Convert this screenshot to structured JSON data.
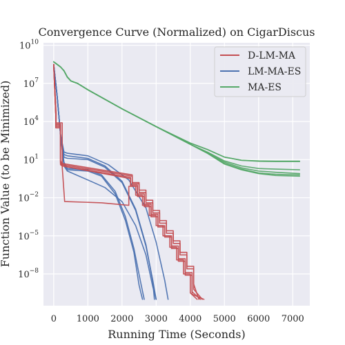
{
  "chart_data": {
    "type": "line",
    "title": "Convergence Curve (Normalized) on CigarDiscus",
    "xlabel": "Running Time (Seconds)",
    "ylabel": "Function Value (to be Minimized)",
    "xlim": [
      -300,
      7500
    ],
    "ylim_log10": [
      -10.5,
      10.2
    ],
    "yscale": "log",
    "grid": true,
    "legend_position": "top-right",
    "xticks": [
      0,
      1000,
      2000,
      3000,
      4000,
      5000,
      6000,
      7000
    ],
    "xtick_labels": [
      "0",
      "1000",
      "2000",
      "3000",
      "4000",
      "5000",
      "6000",
      "7000"
    ],
    "yticks_log10": [
      -8,
      -5,
      -2,
      1,
      4,
      7,
      10
    ],
    "ytick_bases": [
      "10",
      "10",
      "10",
      "10",
      "10",
      "10",
      "10"
    ],
    "ytick_exponents": [
      "−8",
      "−5",
      "−2",
      "1",
      "4",
      "7",
      "10"
    ],
    "series": [
      {
        "name": "D-LM-MA",
        "color": "#c44e52",
        "style": "step",
        "runs": [
          {
            "x": [
              0,
              60,
              60,
              200,
              200,
              250,
              2300,
              2300,
              2500,
              2500,
              2700,
              2700,
              2900,
              2900,
              3100,
              3100,
              3300,
              3300,
              3500,
              3500,
              3700,
              3700,
              3900,
              3900,
              4100,
              4100,
              4350
            ],
            "y": [
              8.5,
              4.6,
              3.5,
              3.5,
              0.8,
              0.6,
              -0.3,
              -0.9,
              -0.9,
              -1.6,
              -1.6,
              -2.4,
              -2.4,
              -3.2,
              -3.2,
              -4.0,
              -4.0,
              -4.8,
              -4.8,
              -5.6,
              -5.6,
              -6.5,
              -6.5,
              -7.6,
              -7.6,
              -9.2,
              -10.0
            ]
          },
          {
            "x": [
              0,
              60,
              60,
              200,
              200,
              250,
              2250,
              2250,
              2450,
              2450,
              2650,
              2650,
              2850,
              2850,
              3050,
              3050,
              3250,
              3250,
              3450,
              3450,
              3650,
              3650,
              3850,
              3850,
              4050,
              4050,
              4300
            ],
            "y": [
              8.5,
              4.6,
              3.7,
              3.7,
              0.7,
              0.5,
              -0.4,
              -1.0,
              -1.0,
              -1.7,
              -1.7,
              -2.5,
              -2.5,
              -3.3,
              -3.3,
              -4.2,
              -4.2,
              -5.0,
              -5.0,
              -5.8,
              -5.8,
              -6.8,
              -6.8,
              -7.9,
              -7.9,
              -9.4,
              -10.0
            ]
          },
          {
            "x": [
              0,
              60,
              60,
              200,
              200,
              250,
              2300,
              2300,
              2500,
              2500,
              2700,
              2700,
              2900,
              2900,
              3100,
              3100,
              3300,
              3300,
              3500,
              3500,
              3700,
              3700,
              3900,
              3900,
              4100,
              4100,
              4250
            ],
            "y": [
              8.5,
              4.6,
              3.6,
              3.6,
              0.9,
              0.7,
              -0.2,
              -0.8,
              -0.8,
              -1.4,
              -1.4,
              -2.2,
              -2.2,
              -3.0,
              -3.0,
              -3.8,
              -3.8,
              -4.6,
              -4.6,
              -5.4,
              -5.4,
              -6.3,
              -6.3,
              -7.4,
              -7.4,
              -8.8,
              -10.0
            ]
          },
          {
            "x": [
              0,
              70,
              70,
              250,
              250,
              320,
              1400,
              2200,
              2200,
              2400,
              2400,
              2600,
              2600,
              2800,
              2800,
              3000,
              3000,
              3200,
              3200,
              3400,
              3400,
              3600,
              3600,
              3800,
              3800,
              4000,
              4000,
              4200
            ],
            "y": [
              8.5,
              4.7,
              3.9,
              3.9,
              0.4,
              -2.3,
              -2.4,
              -2.6,
              -1.1,
              -1.1,
              -1.8,
              -1.8,
              -2.6,
              -2.6,
              -3.4,
              -3.4,
              -4.2,
              -4.2,
              -5.0,
              -5.0,
              -5.9,
              -5.9,
              -6.9,
              -6.9,
              -8.0,
              -8.0,
              -9.5,
              -10.0
            ]
          },
          {
            "x": [
              0,
              60,
              60,
              200,
              200,
              250,
              2250,
              2250,
              2450,
              2450,
              2650,
              2650,
              2850,
              2850,
              3050,
              3050,
              3250,
              3250,
              3450,
              3450,
              3650,
              3650,
              3850,
              3850,
              4050,
              4050,
              4400
            ],
            "y": [
              8.5,
              4.6,
              3.8,
              3.8,
              0.6,
              0.5,
              -0.5,
              -1.1,
              -1.1,
              -1.9,
              -1.9,
              -2.7,
              -2.7,
              -3.5,
              -3.5,
              -4.3,
              -4.3,
              -5.1,
              -5.1,
              -6.0,
              -6.0,
              -7.0,
              -7.0,
              -8.1,
              -8.1,
              -9.6,
              -10.0
            ]
          }
        ]
      },
      {
        "name": "LM-MA-ES",
        "color": "#4c72b0",
        "style": "line",
        "runs": [
          {
            "x": [
              0,
              100,
              200,
              300,
              400,
              1000,
              1400,
              1800,
              2100,
              2350,
              2550,
              2650
            ],
            "y": [
              8.5,
              6.0,
              3.0,
              0.8,
              0.3,
              0.2,
              -0.2,
              -1.5,
              -3.5,
              -6.0,
              -8.7,
              -10.0
            ]
          },
          {
            "x": [
              0,
              100,
              200,
              300,
              400,
              1000,
              1400,
              1800,
              2100,
              2350,
              2500,
              2600
            ],
            "y": [
              8.5,
              6.0,
              3.0,
              0.6,
              0.2,
              0.1,
              -0.3,
              -1.7,
              -3.8,
              -6.3,
              -8.9,
              -10.0
            ]
          },
          {
            "x": [
              0,
              100,
              200,
              300,
              400,
              1000,
              1500,
              2000,
              2400,
              2700,
              2900,
              3000
            ],
            "y": [
              8.5,
              6.0,
              3.0,
              1.2,
              1.1,
              1.0,
              0.4,
              -0.8,
              -3.0,
              -5.8,
              -8.5,
              -10.0
            ]
          },
          {
            "x": [
              0,
              100,
              200,
              300,
              400,
              1000,
              1500,
              2000,
              2400,
              2700,
              2900,
              2950
            ],
            "y": [
              8.5,
              6.0,
              3.0,
              1.4,
              1.3,
              1.1,
              0.5,
              -0.7,
              -2.9,
              -5.7,
              -8.6,
              -10.0
            ]
          },
          {
            "x": [
              0,
              100,
              200,
              300,
              400,
              1000,
              1600,
              2200,
              2700,
              3000,
              3250,
              3350
            ],
            "y": [
              8.5,
              6.0,
              3.0,
              1.6,
              1.5,
              1.3,
              0.6,
              -0.6,
              -2.8,
              -5.5,
              -8.5,
              -10.0
            ]
          },
          {
            "x": [
              0,
              100,
              200,
              300,
              400,
              1000,
              1500,
              2000,
              2400,
              2700,
              2900,
              3000
            ],
            "y": [
              8.5,
              6.0,
              3.0,
              0.5,
              0.1,
              -0.6,
              -1.2,
              -2.3,
              -4.2,
              -6.5,
              -9.0,
              -10.0
            ]
          }
        ]
      },
      {
        "name": "MA-ES",
        "color": "#55a868",
        "style": "line",
        "runs": [
          {
            "x": [
              0,
              100,
              200,
              300,
              400,
              500,
              600,
              700,
              1000,
              2000,
              3000,
              4000,
              4500,
              5000,
              5500,
              6000,
              6500,
              7200
            ],
            "y": [
              8.7,
              8.5,
              8.3,
              8.0,
              7.5,
              7.2,
              7.1,
              7.0,
              6.5,
              5.0,
              3.6,
              2.3,
              1.8,
              1.2,
              0.95,
              0.87,
              0.85,
              0.85
            ]
          },
          {
            "x": [
              0,
              100,
              200,
              300,
              400,
              500,
              600,
              700,
              1000,
              2000,
              3000,
              4000,
              4500,
              5000,
              5500,
              6000,
              6500,
              7200
            ],
            "y": [
              8.7,
              8.5,
              8.3,
              8.0,
              7.5,
              7.2,
              7.1,
              7.0,
              6.5,
              5.0,
              3.6,
              2.3,
              1.8,
              1.2,
              0.95,
              0.9,
              0.88,
              0.88
            ]
          },
          {
            "x": [
              0,
              100,
              200,
              300,
              400,
              500,
              600,
              700,
              1000,
              2000,
              3000,
              4000,
              4500,
              5000,
              5500,
              6000,
              6500,
              7200
            ],
            "y": [
              8.7,
              8.5,
              8.3,
              8.0,
              7.5,
              7.2,
              7.1,
              7.0,
              6.5,
              5.0,
              3.6,
              2.2,
              1.6,
              0.9,
              0.5,
              0.3,
              0.25,
              0.2
            ]
          },
          {
            "x": [
              0,
              100,
              200,
              300,
              400,
              500,
              600,
              700,
              1000,
              2000,
              3000,
              4000,
              4500,
              5000,
              5500,
              6000,
              6500,
              7200
            ],
            "y": [
              8.7,
              8.5,
              8.3,
              8.0,
              7.5,
              7.2,
              7.1,
              7.0,
              6.5,
              5.0,
              3.6,
              2.2,
              1.55,
              0.8,
              0.35,
              0.1,
              0.0,
              -0.1
            ]
          },
          {
            "x": [
              0,
              100,
              200,
              300,
              400,
              500,
              600,
              700,
              1000,
              2000,
              3000,
              4000,
              4500,
              5000,
              5500,
              6000,
              6500,
              7200
            ],
            "y": [
              8.7,
              8.5,
              8.3,
              8.0,
              7.5,
              7.2,
              7.1,
              7.0,
              6.5,
              5.0,
              3.6,
              2.2,
              1.5,
              0.7,
              0.25,
              -0.05,
              -0.15,
              -0.2
            ]
          },
          {
            "x": [
              0,
              100,
              200,
              300,
              400,
              500,
              600,
              700,
              1000,
              2000,
              3000,
              4000,
              4500,
              5000,
              5500,
              6000,
              6500,
              7200
            ],
            "y": [
              8.7,
              8.5,
              8.3,
              8.0,
              7.5,
              7.2,
              7.1,
              7.0,
              6.5,
              5.0,
              3.6,
              2.2,
              1.5,
              0.65,
              0.2,
              -0.1,
              -0.25,
              -0.3
            ]
          }
        ]
      }
    ]
  }
}
